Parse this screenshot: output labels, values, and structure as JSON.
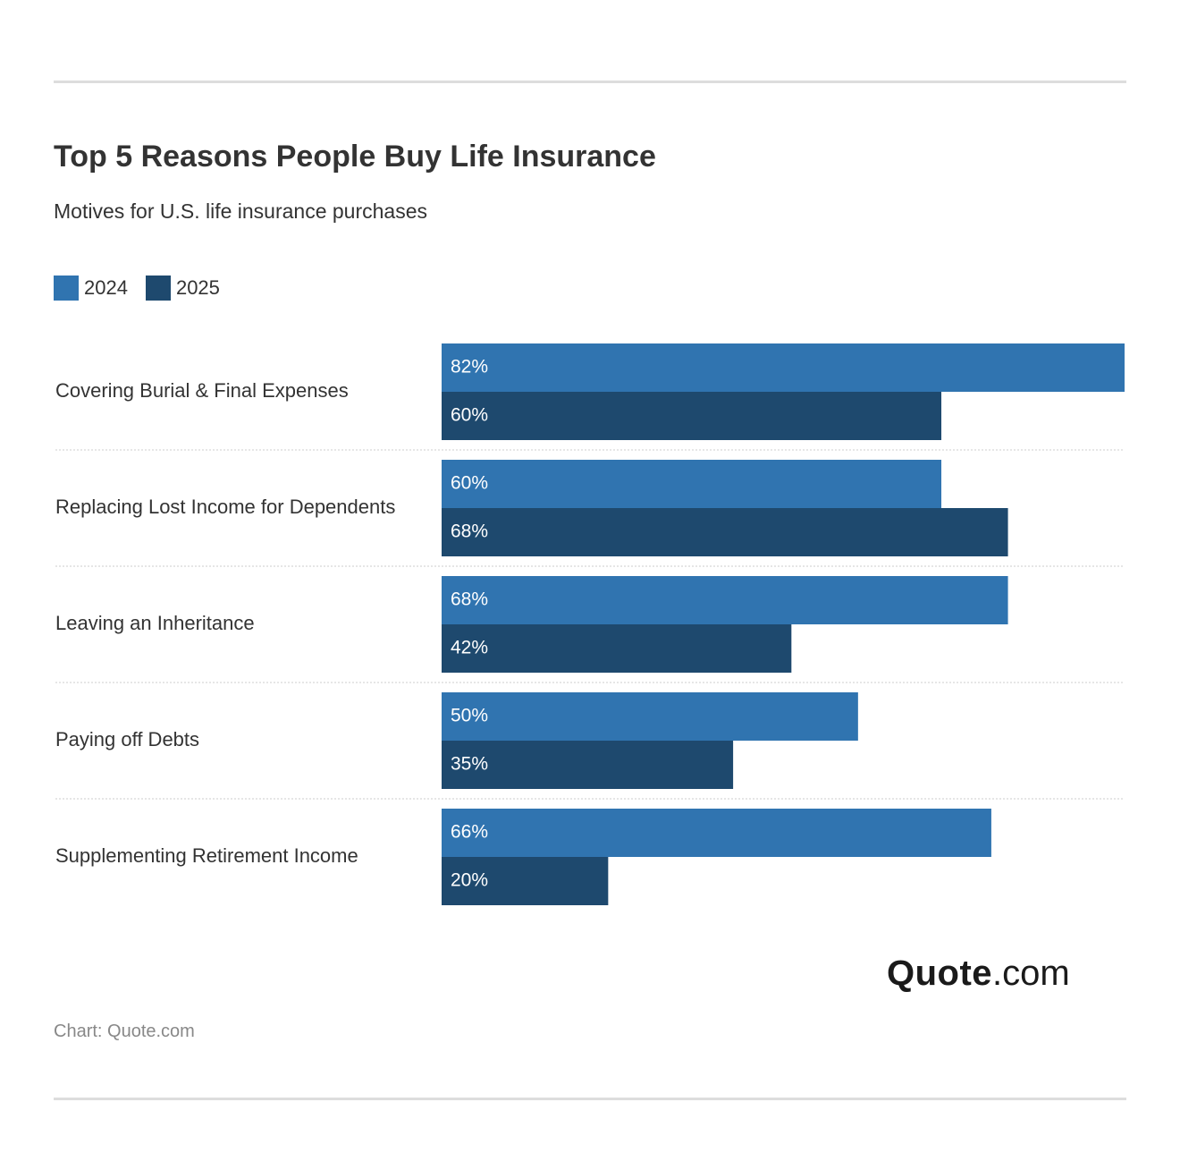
{
  "title": "Top 5 Reasons People Buy Life Insurance",
  "subtitle": "Motives for U.S. life insurance purchases",
  "legend": [
    {
      "label": "2024",
      "color": "#3074b0"
    },
    {
      "label": "2025",
      "color": "#1e496e"
    }
  ],
  "chart_data": {
    "type": "bar",
    "orientation": "horizontal",
    "categories": [
      "Covering Burial & Final Expenses",
      "Replacing Lost Income for Dependents",
      "Leaving an Inheritance",
      "Paying off Debts",
      "Supplementing Retirement Income"
    ],
    "series": [
      {
        "name": "2024",
        "color": "#3074b0",
        "values": [
          82,
          60,
          68,
          50,
          66
        ],
        "labels": [
          "82%",
          "60%",
          "68%",
          "50%",
          "66%"
        ]
      },
      {
        "name": "2025",
        "color": "#1e496e",
        "values": [
          60,
          68,
          42,
          35,
          20
        ],
        "labels": [
          "60%",
          "68%",
          "42%",
          "35%",
          "20%"
        ]
      }
    ],
    "xlim": [
      0,
      82
    ],
    "grid": false,
    "legend_position": "top-left"
  },
  "logo": {
    "strong": "Quote",
    "light": ".com"
  },
  "source": "Chart: Quote.com"
}
